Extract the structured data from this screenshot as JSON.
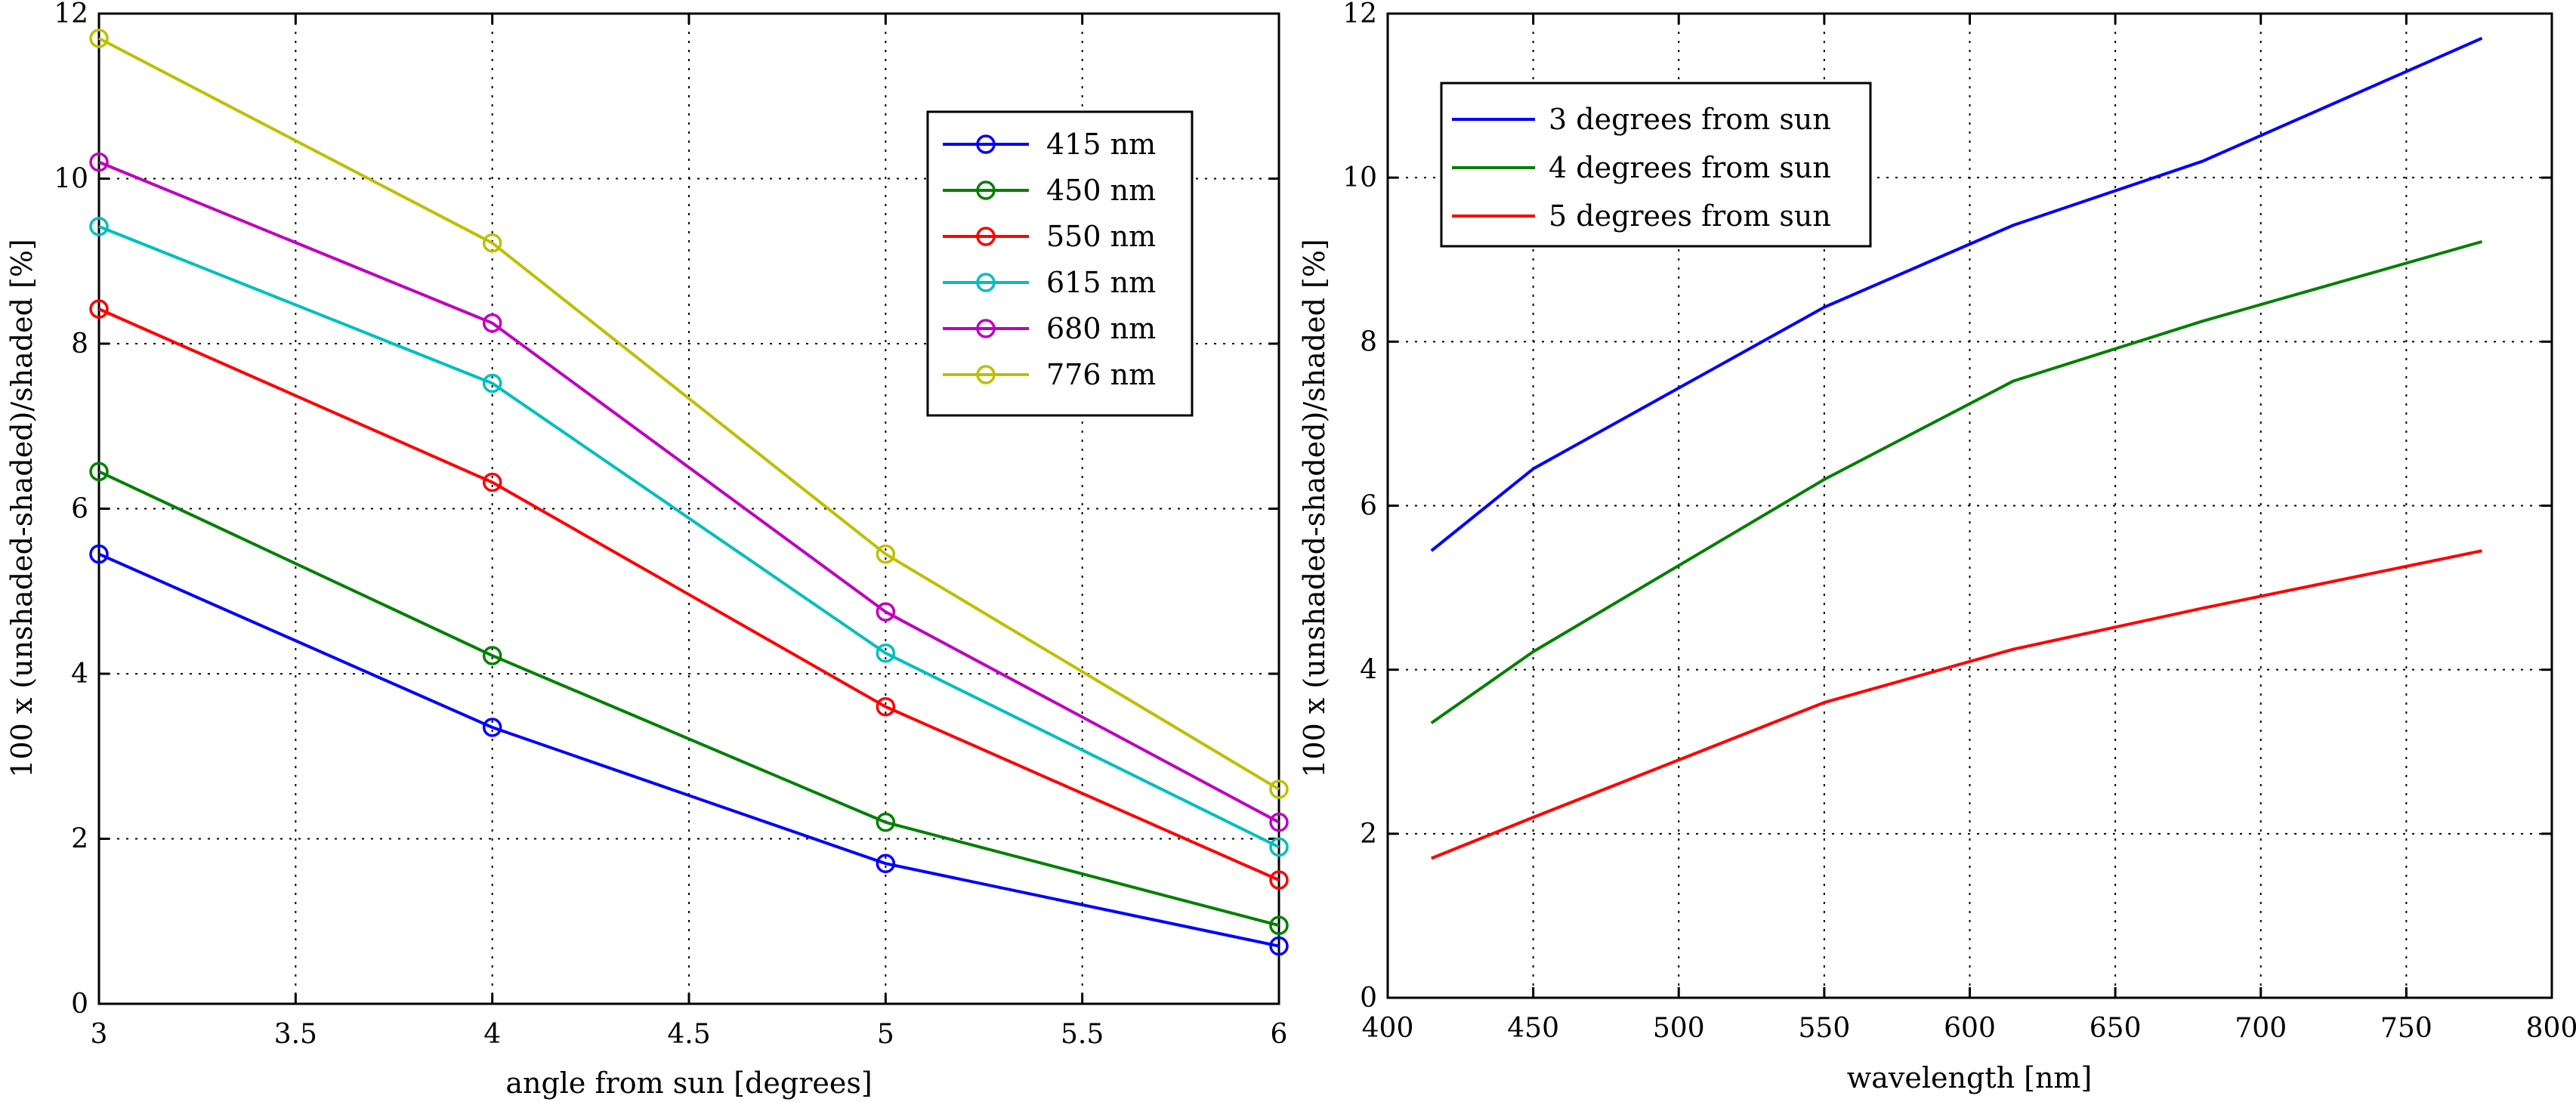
{
  "chart_data": [
    {
      "type": "line",
      "title": "",
      "xlabel": "angle from sun [degrees]",
      "ylabel": "100 x (unshaded-shaded)/shaded [%]",
      "xlim": [
        3,
        6
      ],
      "ylim": [
        0,
        12
      ],
      "grid": true,
      "marker": "circle",
      "legend_position": "top-right",
      "x": [
        3,
        4,
        5,
        6
      ],
      "xticks": [
        "3",
        "3.5",
        "4",
        "4.5",
        "5",
        "5.5",
        "6"
      ],
      "yticks": [
        "0",
        "2",
        "4",
        "6",
        "8",
        "10",
        "12"
      ],
      "series": [
        {
          "name": "415 nm",
          "color": "#0000ff",
          "values": [
            5.45,
            3.35,
            1.7,
            0.7
          ]
        },
        {
          "name": "450 nm",
          "color": "#008000",
          "values": [
            6.45,
            4.22,
            2.2,
            0.95
          ]
        },
        {
          "name": "550 nm",
          "color": "#ff0000",
          "values": [
            8.42,
            6.32,
            3.6,
            1.5
          ]
        },
        {
          "name": "615 nm",
          "color": "#00bfbf",
          "values": [
            9.42,
            7.52,
            4.25,
            1.9
          ]
        },
        {
          "name": "680 nm",
          "color": "#bf00bf",
          "values": [
            10.2,
            8.25,
            4.75,
            2.2
          ]
        },
        {
          "name": "776 nm",
          "color": "#bfbf00",
          "values": [
            11.7,
            9.22,
            5.45,
            2.6
          ]
        }
      ]
    },
    {
      "type": "line",
      "title": "",
      "xlabel": "wavelength [nm]",
      "ylabel": "100 x (unshaded-shaded)/shaded [%]",
      "xlim": [
        400,
        800
      ],
      "ylim": [
        0,
        12
      ],
      "grid": true,
      "legend_position": "top-left",
      "x": [
        415,
        450,
        550,
        615,
        680,
        776
      ],
      "xticks": [
        "400",
        "450",
        "500",
        "550",
        "600",
        "650",
        "700",
        "750",
        "800"
      ],
      "yticks": [
        "0",
        "2",
        "4",
        "6",
        "8",
        "10",
        "12"
      ],
      "series": [
        {
          "name": "3 degrees from sun",
          "color": "#0000ff",
          "values": [
            5.45,
            6.45,
            8.42,
            9.42,
            10.2,
            11.7
          ]
        },
        {
          "name": "4 degrees from sun",
          "color": "#008000",
          "values": [
            3.35,
            4.22,
            6.32,
            7.52,
            8.25,
            9.22
          ]
        },
        {
          "name": "5 degrees from sun",
          "color": "#ff0000",
          "values": [
            1.7,
            2.2,
            3.6,
            4.25,
            4.75,
            5.45
          ]
        }
      ]
    }
  ]
}
